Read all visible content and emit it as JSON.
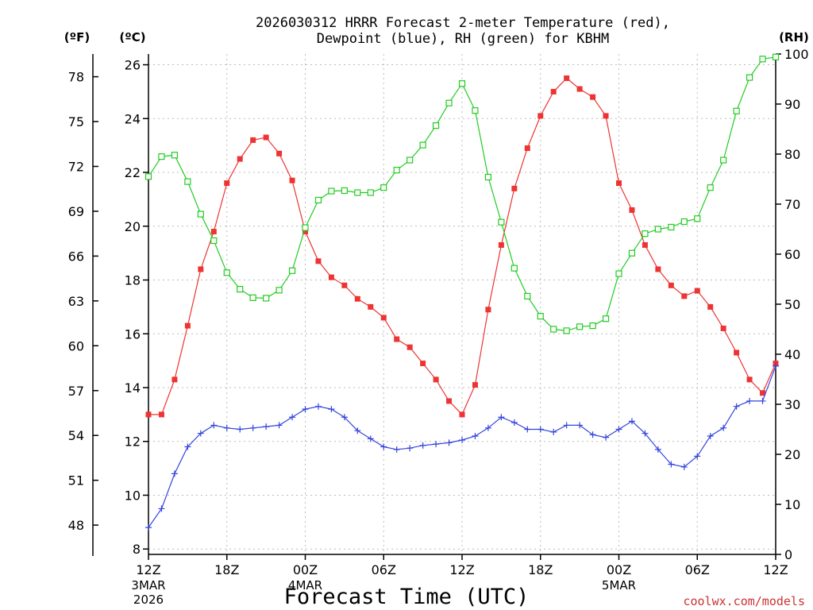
{
  "chart_data": {
    "type": "line",
    "title_line1": "2026030312 HRRR Forecast 2-meter Temperature (red),",
    "title_line2": "Dewpoint (blue), RH (green) for KBHM",
    "xlabel": "Forecast Time (UTC)",
    "left_unit_f": "(ºF)",
    "left_unit_c": "(ºC)",
    "right_unit": "(RH)",
    "watermark": "coolwx.com/models",
    "x_hours_range": [
      0,
      48
    ],
    "ylim_c": [
      7.8,
      26.4
    ],
    "ylim_rh": [
      0,
      100
    ],
    "celsius_ticks": [
      8,
      10,
      12,
      14,
      16,
      18,
      20,
      22,
      24,
      26
    ],
    "fahrenheit_ticks": [
      48,
      51,
      54,
      57,
      60,
      63,
      66,
      69,
      72,
      75,
      78
    ],
    "rh_ticks": [
      0,
      10,
      20,
      30,
      40,
      50,
      60,
      70,
      80,
      90,
      100
    ],
    "x_ticks": [
      {
        "hour": 0,
        "label": "12Z",
        "sub1": "3MAR",
        "sub2": "2026"
      },
      {
        "hour": 6,
        "label": "18Z",
        "sub1": "",
        "sub2": ""
      },
      {
        "hour": 12,
        "label": "00Z",
        "sub1": "4MAR",
        "sub2": ""
      },
      {
        "hour": 18,
        "label": "06Z",
        "sub1": "",
        "sub2": ""
      },
      {
        "hour": 24,
        "label": "12Z",
        "sub1": "",
        "sub2": ""
      },
      {
        "hour": 30,
        "label": "18Z",
        "sub1": "",
        "sub2": ""
      },
      {
        "hour": 36,
        "label": "00Z",
        "sub1": "5MAR",
        "sub2": ""
      },
      {
        "hour": 42,
        "label": "06Z",
        "sub1": "",
        "sub2": ""
      },
      {
        "hour": 48,
        "label": "12Z",
        "sub1": "",
        "sub2": ""
      }
    ],
    "series": [
      {
        "name": "Temperature",
        "unit": "C",
        "color": "#ee3333",
        "marker": "filled-square",
        "values": [
          13.0,
          13.0,
          14.3,
          16.3,
          18.4,
          19.8,
          21.6,
          22.5,
          23.2,
          23.3,
          22.7,
          21.7,
          19.8,
          18.7,
          18.1,
          17.8,
          17.3,
          17.0,
          16.6,
          15.8,
          15.5,
          14.9,
          14.3,
          13.5,
          13.0,
          14.1,
          16.9,
          19.3,
          21.4,
          22.9,
          24.1,
          25.0,
          25.5,
          25.1,
          24.8,
          24.1,
          21.6,
          20.6,
          19.3,
          18.4,
          17.8,
          17.4,
          17.6,
          17.0,
          16.2,
          15.3,
          14.3,
          13.8,
          14.9
        ]
      },
      {
        "name": "Dewpoint",
        "unit": "C",
        "color": "#3344dd",
        "marker": "plus",
        "values": [
          8.8,
          9.5,
          10.8,
          11.8,
          12.3,
          12.6,
          12.5,
          12.45,
          12.5,
          12.55,
          12.6,
          12.9,
          13.2,
          13.3,
          13.2,
          12.9,
          12.4,
          12.1,
          11.8,
          11.7,
          11.75,
          11.85,
          11.9,
          11.95,
          12.05,
          12.2,
          12.5,
          12.9,
          12.7,
          12.45,
          12.45,
          12.35,
          12.6,
          12.6,
          12.25,
          12.15,
          12.45,
          12.75,
          12.3,
          11.7,
          11.15,
          11.05,
          11.45,
          12.2,
          12.5,
          13.3,
          13.5,
          13.5,
          14.8
        ]
      },
      {
        "name": "RH",
        "unit": "%",
        "color": "#22cc22",
        "marker": "open-square",
        "values": [
          75.5,
          79.5,
          79.8,
          74.5,
          68.0,
          62.7,
          56.3,
          53.0,
          51.3,
          51.2,
          52.8,
          56.7,
          65.3,
          70.8,
          72.6,
          72.7,
          72.3,
          72.3,
          73.3,
          76.8,
          78.8,
          81.8,
          85.7,
          90.2,
          94.1,
          88.7,
          75.4,
          66.4,
          57.2,
          51.6,
          47.6,
          45.0,
          44.7,
          45.5,
          45.7,
          47.1,
          56.1,
          60.2,
          64.1,
          65.0,
          65.4,
          66.5,
          67.1,
          73.3,
          78.8,
          88.6,
          95.3,
          99.0,
          99.4
        ]
      }
    ]
  }
}
